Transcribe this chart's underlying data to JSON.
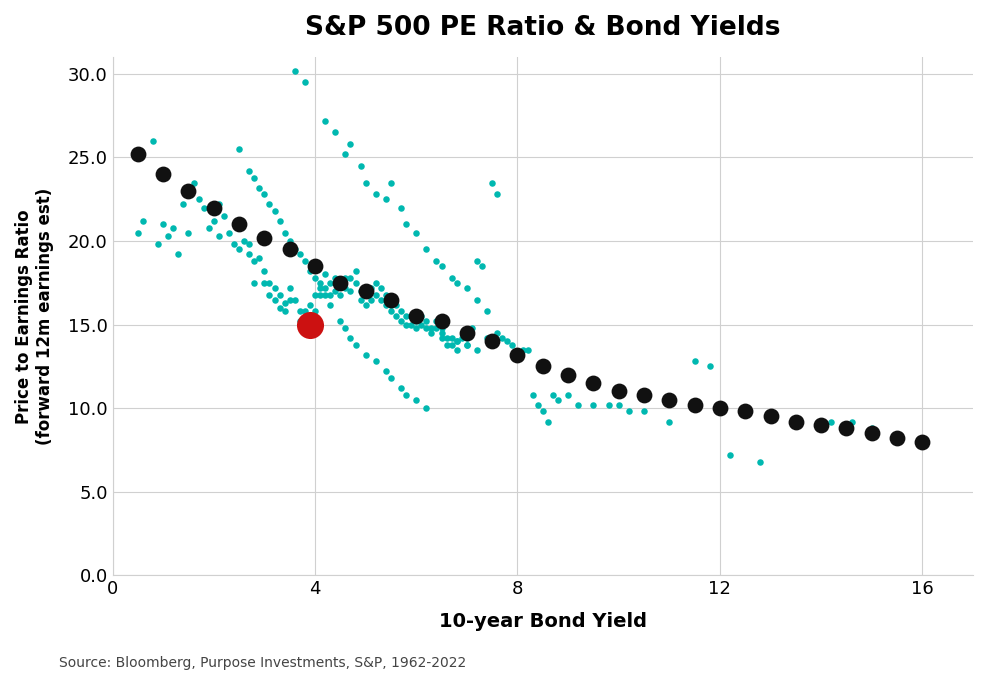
{
  "title": "S&P 500 PE Ratio & Bond Yields",
  "xlabel": "10-year Bond Yield",
  "ylabel": "Price to Earnings Ratio\n(forward 12m earnings est)",
  "source": "Source: Bloomberg, Purpose Investments, S&P, 1962-2022",
  "xlim": [
    0,
    17
  ],
  "ylim": [
    0,
    31
  ],
  "xticks": [
    0,
    4,
    8,
    12,
    16
  ],
  "yticks": [
    0.0,
    5.0,
    10.0,
    15.0,
    20.0,
    25.0,
    30.0
  ],
  "background_color": "#ffffff",
  "teal_color": "#00B8B0",
  "black_color": "#111111",
  "red_color": "#CC1111",
  "teal_points": [
    [
      0.5,
      20.5
    ],
    [
      0.6,
      21.2
    ],
    [
      0.8,
      26.0
    ],
    [
      0.9,
      19.8
    ],
    [
      1.0,
      21.0
    ],
    [
      1.1,
      20.3
    ],
    [
      1.2,
      20.8
    ],
    [
      1.3,
      19.2
    ],
    [
      1.4,
      22.2
    ],
    [
      1.5,
      20.5
    ],
    [
      1.6,
      23.5
    ],
    [
      1.7,
      22.5
    ],
    [
      1.8,
      22.0
    ],
    [
      1.9,
      20.8
    ],
    [
      2.0,
      21.2
    ],
    [
      2.1,
      20.3
    ],
    [
      2.1,
      22.2
    ],
    [
      2.2,
      21.5
    ],
    [
      2.3,
      20.5
    ],
    [
      2.4,
      19.8
    ],
    [
      2.5,
      20.8
    ],
    [
      2.5,
      19.5
    ],
    [
      2.6,
      20.0
    ],
    [
      2.7,
      19.2
    ],
    [
      2.7,
      19.8
    ],
    [
      2.8,
      18.8
    ],
    [
      2.8,
      17.5
    ],
    [
      2.9,
      19.0
    ],
    [
      3.0,
      18.2
    ],
    [
      3.0,
      17.5
    ],
    [
      3.1,
      17.5
    ],
    [
      3.1,
      16.8
    ],
    [
      3.2,
      17.2
    ],
    [
      3.2,
      16.5
    ],
    [
      3.3,
      16.8
    ],
    [
      3.3,
      16.0
    ],
    [
      3.4,
      16.3
    ],
    [
      3.4,
      15.8
    ],
    [
      3.5,
      17.2
    ],
    [
      3.5,
      16.5
    ],
    [
      3.6,
      16.5
    ],
    [
      3.7,
      15.8
    ],
    [
      3.7,
      15.2
    ],
    [
      3.8,
      15.8
    ],
    [
      3.9,
      16.2
    ],
    [
      3.9,
      15.5
    ],
    [
      4.0,
      16.8
    ],
    [
      4.0,
      15.8
    ],
    [
      4.1,
      17.5
    ],
    [
      4.1,
      16.8
    ],
    [
      4.2,
      18.0
    ],
    [
      4.2,
      17.2
    ],
    [
      4.3,
      17.5
    ],
    [
      4.3,
      16.8
    ],
    [
      4.4,
      17.8
    ],
    [
      4.4,
      17.0
    ],
    [
      4.5,
      17.5
    ],
    [
      4.5,
      16.8
    ],
    [
      4.6,
      17.8
    ],
    [
      4.6,
      17.2
    ],
    [
      4.7,
      17.8
    ],
    [
      4.7,
      17.0
    ],
    [
      4.8,
      18.2
    ],
    [
      4.8,
      17.5
    ],
    [
      4.9,
      17.0
    ],
    [
      4.9,
      16.5
    ],
    [
      5.0,
      16.8
    ],
    [
      5.0,
      16.2
    ],
    [
      5.1,
      17.2
    ],
    [
      5.1,
      16.5
    ],
    [
      5.2,
      17.5
    ],
    [
      5.2,
      16.8
    ],
    [
      5.3,
      17.2
    ],
    [
      5.3,
      16.5
    ],
    [
      5.4,
      16.8
    ],
    [
      5.4,
      16.2
    ],
    [
      5.5,
      16.2
    ],
    [
      5.5,
      15.8
    ],
    [
      5.6,
      16.2
    ],
    [
      5.6,
      15.5
    ],
    [
      5.7,
      15.8
    ],
    [
      5.7,
      15.2
    ],
    [
      5.8,
      15.5
    ],
    [
      5.8,
      15.0
    ],
    [
      5.9,
      15.5
    ],
    [
      5.9,
      15.0
    ],
    [
      6.0,
      15.2
    ],
    [
      6.0,
      14.8
    ],
    [
      6.1,
      15.5
    ],
    [
      6.1,
      15.0
    ],
    [
      6.2,
      15.2
    ],
    [
      6.2,
      14.8
    ],
    [
      6.3,
      14.8
    ],
    [
      6.3,
      14.5
    ],
    [
      6.4,
      15.2
    ],
    [
      6.4,
      14.8
    ],
    [
      6.5,
      14.8
    ],
    [
      6.5,
      14.2
    ],
    [
      6.6,
      14.2
    ],
    [
      6.6,
      13.8
    ],
    [
      6.7,
      14.2
    ],
    [
      6.7,
      13.8
    ],
    [
      6.8,
      14.0
    ],
    [
      6.8,
      13.5
    ],
    [
      6.9,
      14.2
    ],
    [
      7.0,
      14.2
    ],
    [
      7.0,
      13.8
    ],
    [
      7.1,
      14.8
    ],
    [
      7.2,
      18.8
    ],
    [
      7.3,
      18.5
    ],
    [
      7.4,
      14.2
    ],
    [
      7.5,
      14.2
    ],
    [
      7.5,
      13.8
    ],
    [
      7.6,
      14.5
    ],
    [
      7.7,
      14.2
    ],
    [
      7.8,
      14.0
    ],
    [
      7.9,
      13.8
    ],
    [
      8.0,
      13.2
    ],
    [
      8.1,
      13.5
    ],
    [
      8.2,
      13.5
    ],
    [
      8.3,
      10.8
    ],
    [
      8.4,
      10.2
    ],
    [
      8.5,
      9.8
    ],
    [
      8.6,
      9.2
    ],
    [
      8.7,
      10.8
    ],
    [
      8.8,
      10.5
    ],
    [
      9.0,
      10.8
    ],
    [
      9.2,
      10.2
    ],
    [
      9.5,
      10.2
    ],
    [
      9.8,
      10.2
    ],
    [
      10.0,
      10.2
    ],
    [
      10.2,
      9.8
    ],
    [
      10.5,
      9.8
    ],
    [
      11.0,
      9.2
    ],
    [
      11.5,
      12.8
    ],
    [
      11.8,
      12.5
    ],
    [
      12.2,
      7.2
    ],
    [
      12.8,
      6.8
    ],
    [
      14.2,
      9.2
    ],
    [
      14.6,
      9.2
    ],
    [
      15.0,
      8.8
    ],
    [
      15.5,
      8.2
    ],
    [
      3.6,
      30.2
    ],
    [
      3.8,
      29.5
    ],
    [
      4.2,
      27.2
    ],
    [
      4.4,
      26.5
    ],
    [
      4.6,
      25.2
    ],
    [
      4.7,
      25.8
    ],
    [
      4.9,
      24.5
    ],
    [
      5.0,
      23.5
    ],
    [
      5.2,
      22.8
    ],
    [
      5.4,
      22.5
    ],
    [
      5.5,
      23.5
    ],
    [
      5.7,
      22.0
    ],
    [
      5.8,
      21.0
    ],
    [
      6.0,
      20.5
    ],
    [
      6.2,
      19.5
    ],
    [
      6.4,
      18.8
    ],
    [
      6.5,
      18.5
    ],
    [
      6.7,
      17.8
    ],
    [
      6.8,
      17.5
    ],
    [
      7.0,
      17.2
    ],
    [
      7.2,
      16.5
    ],
    [
      7.4,
      15.8
    ],
    [
      7.5,
      23.5
    ],
    [
      7.6,
      22.8
    ],
    [
      2.5,
      25.5
    ],
    [
      2.7,
      24.2
    ],
    [
      2.8,
      23.8
    ],
    [
      2.9,
      23.2
    ],
    [
      3.0,
      22.8
    ],
    [
      3.1,
      22.2
    ],
    [
      3.2,
      21.8
    ],
    [
      3.3,
      21.2
    ],
    [
      3.4,
      20.5
    ],
    [
      3.5,
      20.0
    ],
    [
      3.6,
      19.5
    ],
    [
      3.7,
      19.2
    ],
    [
      3.8,
      18.8
    ],
    [
      3.9,
      18.2
    ],
    [
      4.0,
      17.8
    ],
    [
      4.1,
      17.2
    ],
    [
      4.2,
      16.8
    ],
    [
      4.3,
      16.2
    ],
    [
      4.5,
      15.2
    ],
    [
      4.6,
      14.8
    ],
    [
      4.7,
      14.2
    ],
    [
      4.8,
      13.8
    ],
    [
      5.0,
      13.2
    ],
    [
      5.2,
      12.8
    ],
    [
      5.4,
      12.2
    ],
    [
      5.5,
      11.8
    ],
    [
      5.7,
      11.2
    ],
    [
      5.8,
      10.8
    ],
    [
      6.0,
      10.5
    ],
    [
      6.2,
      10.0
    ],
    [
      6.5,
      14.5
    ],
    [
      6.8,
      14.0
    ],
    [
      7.0,
      13.8
    ],
    [
      7.2,
      13.5
    ]
  ],
  "black_points": [
    [
      0.5,
      25.2
    ],
    [
      1.0,
      24.0
    ],
    [
      1.5,
      23.0
    ],
    [
      2.0,
      22.0
    ],
    [
      2.5,
      21.0
    ],
    [
      3.0,
      20.2
    ],
    [
      3.5,
      19.5
    ],
    [
      4.0,
      18.5
    ],
    [
      4.5,
      17.5
    ],
    [
      5.0,
      17.0
    ],
    [
      5.5,
      16.5
    ],
    [
      6.0,
      15.5
    ],
    [
      6.5,
      15.2
    ],
    [
      7.0,
      14.5
    ],
    [
      7.5,
      14.0
    ],
    [
      8.0,
      13.2
    ],
    [
      8.5,
      12.5
    ],
    [
      9.0,
      12.0
    ],
    [
      9.5,
      11.5
    ],
    [
      10.0,
      11.0
    ],
    [
      10.5,
      10.8
    ],
    [
      11.0,
      10.5
    ],
    [
      11.5,
      10.2
    ],
    [
      12.0,
      10.0
    ],
    [
      12.5,
      9.8
    ],
    [
      13.0,
      9.5
    ],
    [
      13.5,
      9.2
    ],
    [
      14.0,
      9.0
    ],
    [
      14.5,
      8.8
    ],
    [
      15.0,
      8.5
    ],
    [
      15.5,
      8.2
    ],
    [
      16.0,
      8.0
    ]
  ],
  "red_point": [
    3.9,
    15.0
  ]
}
